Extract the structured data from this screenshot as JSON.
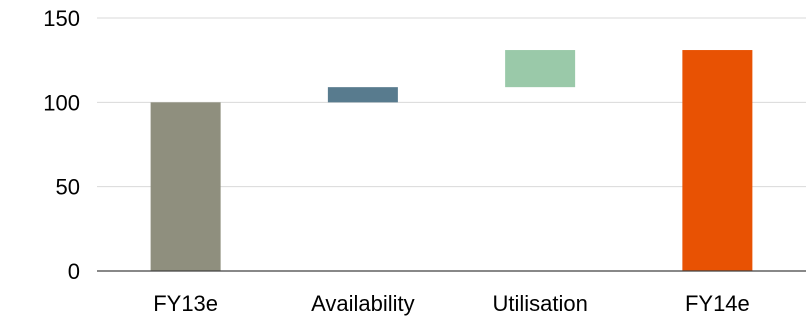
{
  "chart_data": {
    "type": "bar",
    "subtype": "waterfall",
    "title": "",
    "xlabel": "",
    "ylabel": "",
    "categories": [
      "FY13e",
      "Availability",
      "Utilisation",
      "FY14e"
    ],
    "bars": [
      {
        "category": "FY13e",
        "base": 0,
        "value": 100,
        "color": "#8f8f7e"
      },
      {
        "category": "Availability",
        "base": 100,
        "value": 9,
        "color": "#587b8e"
      },
      {
        "category": "Utilisation",
        "base": 109,
        "value": 22,
        "color": "#9ac9a9"
      },
      {
        "category": "FY14e",
        "base": 0,
        "value": 131,
        "color": "#e85203"
      }
    ],
    "ylim": [
      0,
      150
    ],
    "yticks": [
      "0",
      "50",
      "100",
      "150"
    ],
    "grid": true,
    "legend": "none"
  }
}
